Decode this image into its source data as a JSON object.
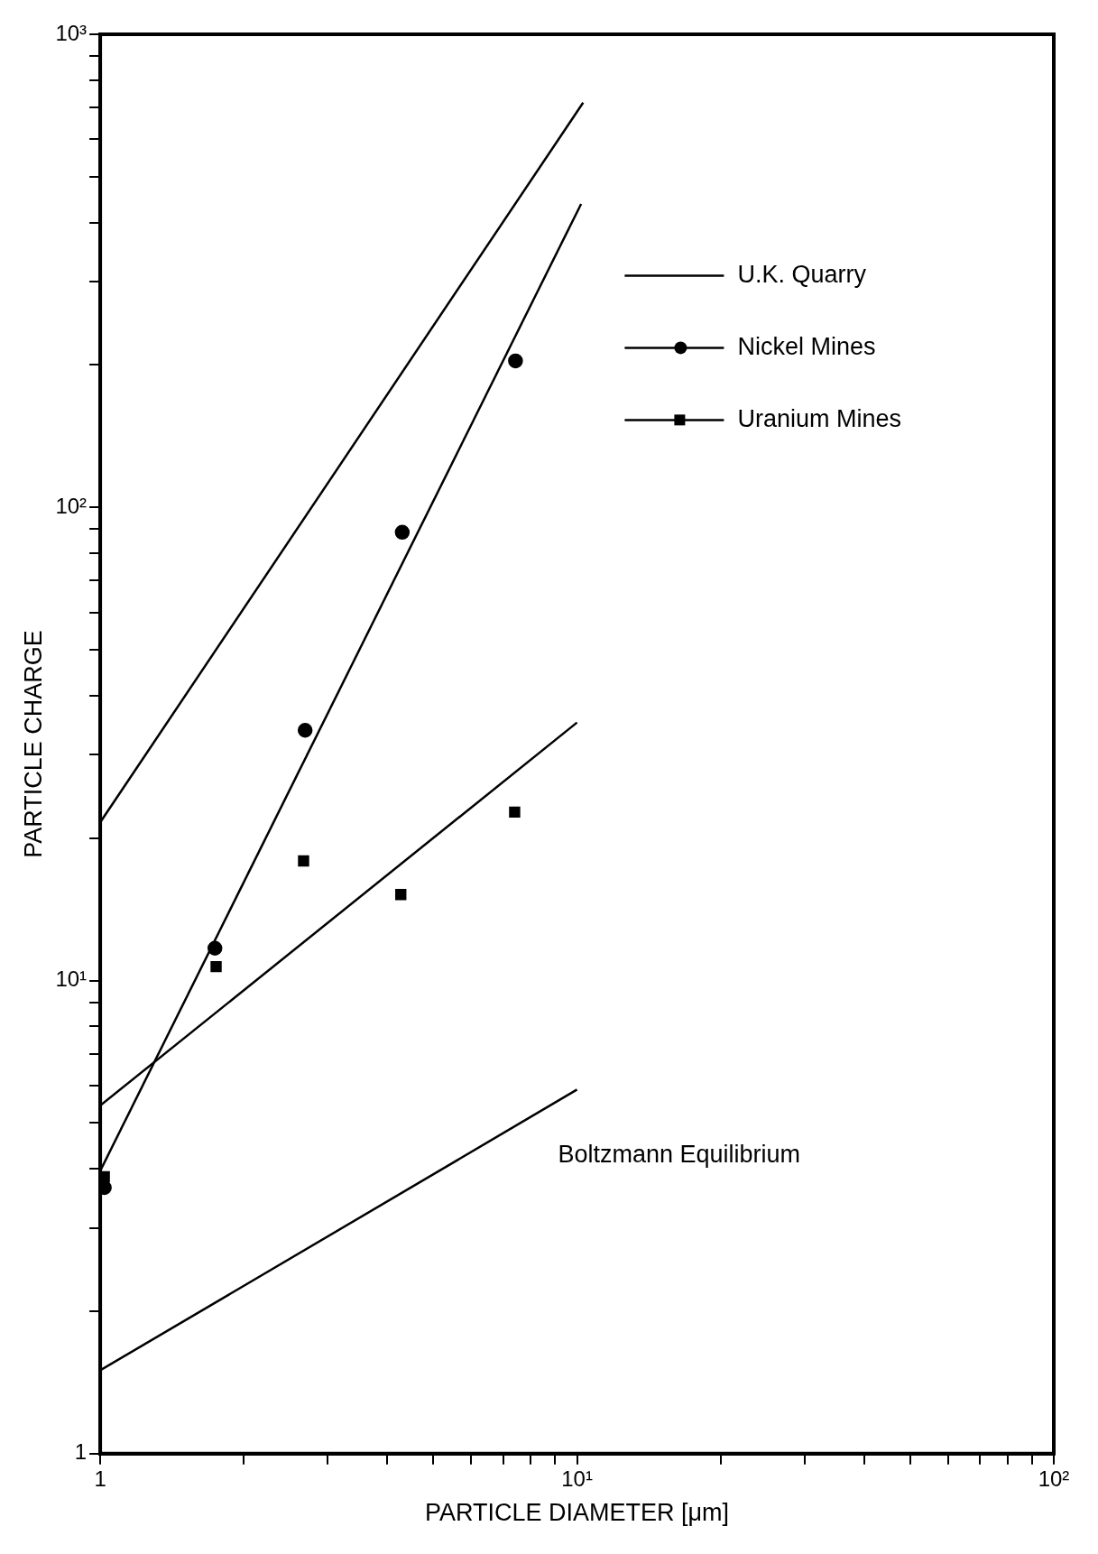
{
  "chart_data": {
    "type": "line",
    "xlabel": "PARTICLE DIAMETER [μm]",
    "ylabel": "PARTICLE CHARGE",
    "log": "xy",
    "grid": false,
    "legend": "top right",
    "line_style": "solid",
    "xlim": [
      1,
      100
    ],
    "ylim": [
      1,
      1000
    ],
    "xticks": [
      1,
      {
        "value": 2,
        "label": null
      },
      {
        "value": 3,
        "label": null
      },
      {
        "value": 4,
        "label": null
      },
      {
        "value": 5,
        "label": null
      },
      {
        "value": 6,
        "label": null
      },
      {
        "value": 7,
        "label": null
      },
      {
        "value": 8,
        "label": null
      },
      {
        "value": 9,
        "label": null
      },
      {
        "value": 10,
        "label": "10¹"
      },
      {
        "value": 20,
        "label": null
      },
      {
        "value": 30,
        "label": null
      },
      {
        "value": 40,
        "label": null
      },
      {
        "value": 50,
        "label": null
      },
      {
        "value": 60,
        "label": null
      },
      {
        "value": 70,
        "label": null
      },
      {
        "value": 80,
        "label": null
      },
      {
        "value": 90,
        "label": null
      },
      {
        "value": 100,
        "label": "10²"
      }
    ],
    "yticks": [
      1,
      {
        "value": 2,
        "label": null
      },
      {
        "value": 3,
        "label": null
      },
      {
        "value": 4,
        "label": null
      },
      {
        "value": 5,
        "label": null
      },
      {
        "value": 6,
        "label": null
      },
      {
        "value": 7,
        "label": null
      },
      {
        "value": 8,
        "label": null
      },
      {
        "value": 9,
        "label": null
      },
      {
        "value": 10,
        "label": "10¹"
      },
      {
        "value": 20,
        "label": null
      },
      {
        "value": 30,
        "label": null
      },
      {
        "value": 40,
        "label": null
      },
      {
        "value": 50,
        "label": null
      },
      {
        "value": 60,
        "label": null
      },
      {
        "value": 70,
        "label": null
      },
      {
        "value": 80,
        "label": null
      },
      {
        "value": 90,
        "label": null
      },
      {
        "value": 100,
        "label": "10²"
      },
      {
        "value": 200,
        "label": null
      },
      {
        "value": 300,
        "label": null
      },
      {
        "value": 400,
        "label": null
      },
      {
        "value": 500,
        "label": null
      },
      {
        "value": 600,
        "label": null
      },
      {
        "value": 700,
        "label": null
      },
      {
        "value": 800,
        "label": null
      },
      {
        "value": 900,
        "label": null
      },
      {
        "value": 1000,
        "label": "10³"
      }
    ],
    "annotations": [
      "Boltzmann Equilibrium"
    ],
    "series": [
      {
        "name": "U.K. Quarry",
        "type": "line",
        "x": [
          1,
          10.3
        ],
        "values": [
          21.6,
          717
        ],
        "color": "#000000",
        "marker": "none"
      },
      {
        "type": "line",
        "x": [
          1,
          10.2
        ],
        "values": [
          3.96,
          438
        ],
        "color": "#000000",
        "marker": "none"
      },
      {
        "name": "Nickel Mines",
        "type": "scatter",
        "x": [
          1.02,
          1.74,
          2.69,
          4.3,
          7.43
        ],
        "values": [
          3.65,
          11.7,
          33.8,
          88.6,
          204
        ],
        "color": "#000000",
        "marker": "circle"
      },
      {
        "type": "line",
        "x": [
          1,
          10
        ],
        "values": [
          5.44,
          35.1
        ],
        "color": "#000000",
        "marker": "none"
      },
      {
        "name": "Uranium Mines",
        "type": "scatter",
        "x": [
          1.02,
          1.75,
          2.67,
          4.27,
          7.4
        ],
        "values": [
          3.85,
          10.7,
          17.9,
          15.2,
          22.7
        ],
        "color": "#000000",
        "marker": "square"
      },
      {
        "type": "line",
        "x": [
          1,
          10
        ],
        "values": [
          1.5,
          5.88
        ],
        "color": "#000000",
        "marker": "none"
      }
    ]
  }
}
